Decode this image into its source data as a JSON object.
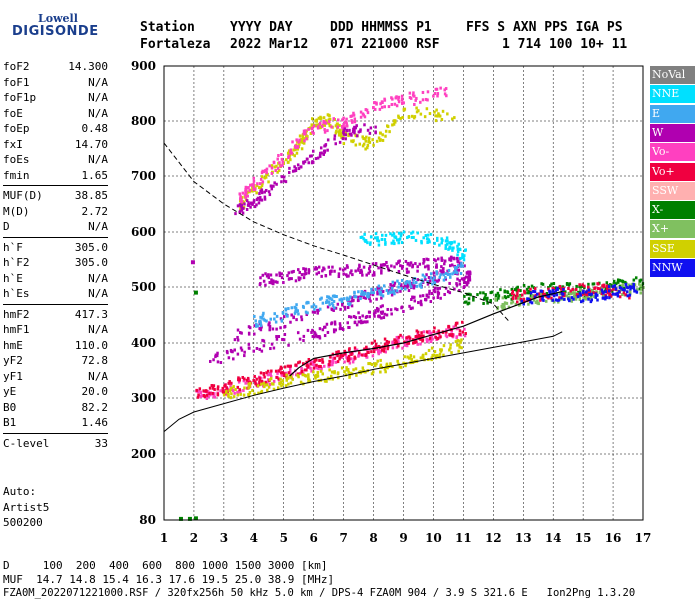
{
  "logo": {
    "top": "Lowell",
    "bottom": "DIGISONDE"
  },
  "header": {
    "row1": [
      "Station",
      "YYYY DAY",
      "DDD HHMMSS P1",
      "FFS S AXN PPS IGA PS"
    ],
    "row2": [
      "Fortaleza",
      "2022 Mar12",
      "071 221000 RSF",
      "1 714 100 10+ 11"
    ]
  },
  "params": [
    {
      "name": "foF2",
      "value": "14.300"
    },
    {
      "name": "foF1",
      "value": "N/A"
    },
    {
      "name": "foF1p",
      "value": "N/A"
    },
    {
      "name": "foE",
      "value": "N/A"
    },
    {
      "name": "foEp",
      "value": "0.48"
    },
    {
      "name": "fxI",
      "value": "14.70"
    },
    {
      "name": "foEs",
      "value": "N/A"
    },
    {
      "name": "fmin",
      "value": "1.65"
    },
    {
      "name": "MUF(D)",
      "value": "38.85"
    },
    {
      "name": "M(D)",
      "value": "2.72"
    },
    {
      "name": "D",
      "value": "N/A"
    },
    {
      "name": "h`F",
      "value": "305.0"
    },
    {
      "name": "h`F2",
      "value": "305.0"
    },
    {
      "name": "h`E",
      "value": "N/A"
    },
    {
      "name": "h`Es",
      "value": "N/A"
    },
    {
      "name": "hmF2",
      "value": "417.3"
    },
    {
      "name": "hmF1",
      "value": "N/A"
    },
    {
      "name": "hmE",
      "value": "110.0"
    },
    {
      "name": "yF2",
      "value": "72.8"
    },
    {
      "name": "yF1",
      "value": "N/A"
    },
    {
      "name": "yE",
      "value": "20.0"
    },
    {
      "name": "B0",
      "value": "82.2"
    },
    {
      "name": "B1",
      "value": "1.46"
    },
    {
      "name": "C-level",
      "value": "33"
    }
  ],
  "auto": {
    "label": "Auto:",
    "artist": "Artist5",
    "version": "500200"
  },
  "legend": [
    {
      "label": "NoVal",
      "color": "#808080"
    },
    {
      "label": "NNE",
      "color": "#00e0ff"
    },
    {
      "label": "E",
      "color": "#40a8f0"
    },
    {
      "label": "W",
      "color": "#b000b0"
    },
    {
      "label": "Vo-",
      "color": "#ff40c0"
    },
    {
      "label": "Vo+",
      "color": "#f00040"
    },
    {
      "label": "SSW",
      "color": "#ffb0b0"
    },
    {
      "label": "X-",
      "color": "#008000"
    },
    {
      "label": "X+",
      "color": "#80c060"
    },
    {
      "label": "SSE",
      "color": "#d0d000"
    },
    {
      "label": "NNW",
      "color": "#1010f0"
    }
  ],
  "footer": {
    "d_row": "D     100  200  400  600  800 1000 1500 3000 [km]",
    "muf_row": "MUF  14.7 14.8 15.4 16.3 17.6 19.5 25.0 38.9 [MHz]",
    "file_row": "FZA0M_2022071221000.RSF / 320fx256h 50 kHz 5.0 km / DPS-4 FZA0M 904 / 3.9 S 321.6 E   Ion2Png 1.3.20"
  },
  "chart_data": {
    "type": "scatter",
    "x_ticks": [
      1,
      2,
      3,
      4,
      5,
      6,
      7,
      8,
      9,
      10,
      11,
      12,
      13,
      14,
      15,
      16,
      17
    ],
    "y_ticks": [
      80,
      200,
      300,
      400,
      500,
      600,
      700,
      800,
      900
    ],
    "xlim": [
      1,
      17
    ],
    "ylim": [
      80,
      900
    ],
    "grid": true,
    "traces": [
      {
        "color": "#ff40c0",
        "points": [
          [
            2.0,
            305
          ],
          [
            3,
            318
          ],
          [
            4,
            330
          ],
          [
            5,
            345
          ],
          [
            6,
            362
          ],
          [
            7,
            375
          ],
          [
            8,
            390
          ],
          [
            9,
            405
          ],
          [
            10,
            415
          ],
          [
            11,
            425
          ]
        ]
      },
      {
        "color": "#f00040",
        "points": [
          [
            2.1,
            310
          ],
          [
            3,
            322
          ],
          [
            4,
            335
          ],
          [
            5,
            350
          ],
          [
            6,
            365
          ],
          [
            7,
            380
          ],
          [
            8,
            395
          ],
          [
            9,
            408
          ],
          [
            10,
            420
          ],
          [
            11,
            430
          ]
        ]
      },
      {
        "color": "#b000b0",
        "points": [
          [
            2.5,
            372
          ],
          [
            4,
            395
          ],
          [
            6,
            420
          ],
          [
            7,
            438
          ],
          [
            8,
            455
          ],
          [
            9,
            470
          ],
          [
            10,
            490
          ],
          [
            11,
            510
          ],
          [
            11.2,
            525
          ]
        ]
      },
      {
        "color": "#b000b0",
        "points": [
          [
            3.3,
            415
          ],
          [
            5,
            440
          ],
          [
            7,
            470
          ],
          [
            8,
            490
          ],
          [
            9,
            505
          ],
          [
            10,
            520
          ],
          [
            11,
            540
          ]
        ]
      },
      {
        "color": "#b000b0",
        "points": [
          [
            4.1,
            515
          ],
          [
            5,
            520
          ],
          [
            6,
            530
          ],
          [
            7,
            532
          ],
          [
            8,
            535
          ],
          [
            9,
            540
          ],
          [
            10,
            545
          ],
          [
            11,
            550
          ]
        ]
      },
      {
        "color": "#d0d000",
        "points": [
          [
            3,
            310
          ],
          [
            4,
            320
          ],
          [
            5,
            335
          ],
          [
            6,
            340
          ],
          [
            7,
            350
          ],
          [
            8,
            358
          ],
          [
            9,
            368
          ],
          [
            10,
            385
          ],
          [
            11,
            400
          ]
        ]
      },
      {
        "color": "#40a8f0",
        "points": [
          [
            4,
            440
          ],
          [
            5,
            455
          ],
          [
            6,
            470
          ],
          [
            7,
            480
          ],
          [
            8,
            495
          ],
          [
            9,
            505
          ],
          [
            10,
            520
          ],
          [
            11,
            540
          ]
        ]
      },
      {
        "color": "#00e0ff",
        "points": [
          [
            7.5,
            588
          ],
          [
            8.5,
            590
          ],
          [
            9.5,
            595
          ],
          [
            10.5,
            580
          ],
          [
            11,
            560
          ]
        ]
      },
      {
        "color": "#008000",
        "points": [
          [
            11,
            480
          ],
          [
            12,
            485
          ],
          [
            13,
            495
          ],
          [
            14,
            500
          ],
          [
            15,
            495
          ],
          [
            16,
            505
          ],
          [
            17,
            510
          ]
        ]
      },
      {
        "color": "#80c060",
        "points": [
          [
            12,
            470
          ],
          [
            13,
            480
          ],
          [
            14,
            485
          ],
          [
            15,
            490
          ],
          [
            16,
            495
          ],
          [
            17,
            500
          ]
        ]
      },
      {
        "color": "#f00040",
        "points": [
          [
            12.5,
            485
          ],
          [
            13.5,
            490
          ],
          [
            14.5,
            495
          ],
          [
            15.5,
            500
          ],
          [
            16.5,
            490
          ]
        ]
      },
      {
        "color": "#1010f0",
        "points": [
          [
            12.8,
            480
          ],
          [
            14,
            490
          ],
          [
            15,
            485
          ],
          [
            16,
            495
          ],
          [
            16.8,
            500
          ]
        ]
      },
      {
        "color": "#d0d000",
        "points": [
          [
            3.5,
            650
          ],
          [
            4,
            680
          ],
          [
            5,
            730
          ],
          [
            5.5,
            760
          ],
          [
            6,
            800
          ],
          [
            6.5,
            805
          ],
          [
            7,
            770
          ],
          [
            8,
            760
          ],
          [
            9,
            820
          ],
          [
            10.7,
            810
          ]
        ]
      },
      {
        "color": "#ff40c0",
        "points": [
          [
            3.5,
            660
          ],
          [
            4,
            690
          ],
          [
            5,
            740
          ],
          [
            6,
            790
          ],
          [
            7,
            800
          ],
          [
            8,
            830
          ],
          [
            9,
            840
          ],
          [
            10.5,
            860
          ]
        ]
      },
      {
        "color": "#b000b0",
        "points": [
          [
            3.4,
            640
          ],
          [
            4,
            660
          ],
          [
            5,
            700
          ],
          [
            6,
            740
          ],
          [
            7,
            780
          ],
          [
            8,
            790
          ]
        ]
      }
    ],
    "profile_line": [
      [
        1,
        240
      ],
      [
        1.5,
        262
      ],
      [
        2,
        275
      ],
      [
        3,
        290
      ],
      [
        4,
        305
      ],
      [
        5,
        318
      ],
      [
        6,
        330
      ],
      [
        7,
        340
      ],
      [
        8,
        352
      ],
      [
        9,
        362
      ],
      [
        10,
        372
      ],
      [
        11,
        382
      ],
      [
        12,
        392
      ],
      [
        13,
        402
      ],
      [
        14,
        412
      ],
      [
        14.3,
        420
      ]
    ],
    "dashed_line": [
      [
        1,
        760
      ],
      [
        1.5,
        725
      ],
      [
        2,
        690
      ],
      [
        3,
        650
      ],
      [
        4,
        618
      ],
      [
        5,
        595
      ],
      [
        6,
        575
      ],
      [
        7,
        558
      ],
      [
        8,
        540
      ],
      [
        9,
        522
      ],
      [
        10,
        505
      ],
      [
        11,
        490
      ],
      [
        12,
        470
      ],
      [
        12.5,
        440
      ]
    ],
    "trace_line": [
      [
        5.2,
        340
      ],
      [
        5.5,
        355
      ],
      [
        6,
        372
      ],
      [
        7,
        382
      ],
      [
        8,
        390
      ],
      [
        9,
        400
      ],
      [
        10,
        415
      ],
      [
        11,
        430
      ],
      [
        12,
        452
      ],
      [
        13,
        472
      ],
      [
        13.5,
        482
      ],
      [
        14,
        488
      ],
      [
        14.3,
        492
      ]
    ],
    "extra_points": [
      {
        "color": "#008000",
        "points": [
          [
            1.5,
            82
          ],
          [
            1.8,
            82
          ],
          [
            2.0,
            83
          ]
        ]
      },
      {
        "color": "#b000b0",
        "points": [
          [
            1.9,
            545
          ]
        ]
      },
      {
        "color": "#008000",
        "points": [
          [
            2.0,
            490
          ]
        ]
      }
    ]
  }
}
